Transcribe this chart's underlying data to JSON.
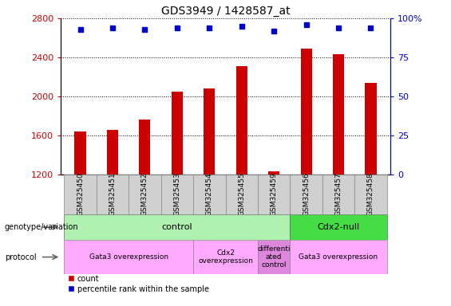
{
  "title": "GDS3949 / 1428587_at",
  "samples": [
    "GSM325450",
    "GSM325451",
    "GSM325452",
    "GSM325453",
    "GSM325454",
    "GSM325455",
    "GSM325459",
    "GSM325456",
    "GSM325457",
    "GSM325458"
  ],
  "counts": [
    1640,
    1660,
    1760,
    2050,
    2080,
    2310,
    1230,
    2490,
    2430,
    2140
  ],
  "percentiles": [
    93,
    94,
    93,
    94,
    94,
    95,
    92,
    96,
    94,
    94
  ],
  "ylim_left": [
    1200,
    2800
  ],
  "ylim_right": [
    0,
    100
  ],
  "bar_color": "#cc0000",
  "dot_color": "#0000cc",
  "background_color": "#ffffff",
  "genotype_groups": [
    {
      "label": "control",
      "start": 0,
      "end": 6,
      "color": "#b0f0b0"
    },
    {
      "label": "Cdx2-null",
      "start": 7,
      "end": 9,
      "color": "#44dd44"
    }
  ],
  "protocol_groups": [
    {
      "label": "Gata3 overexpression",
      "start": 0,
      "end": 3,
      "color": "#ffaaff"
    },
    {
      "label": "Cdx2\noverexpression",
      "start": 4,
      "end": 5,
      "color": "#ffaaff"
    },
    {
      "label": "differenti\nated\ncontrol",
      "start": 6,
      "end": 6,
      "color": "#dd88dd"
    },
    {
      "label": "Gata3 overexpression",
      "start": 7,
      "end": 9,
      "color": "#ffaaff"
    }
  ],
  "yticks_left": [
    1200,
    1600,
    2000,
    2400,
    2800
  ],
  "yticks_right": [
    0,
    25,
    50,
    75,
    100
  ],
  "legend_count_color": "#cc0000",
  "legend_pct_color": "#0000cc"
}
